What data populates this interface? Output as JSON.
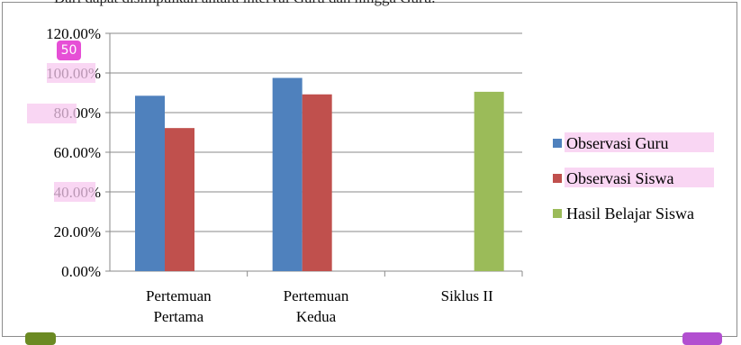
{
  "heading_text": "Dari dapat disimpulkan antara interval Guru dan hingga Guru.",
  "badges": {
    "fifty": "50"
  },
  "colors": {
    "observasi_guru": "#4f81bd",
    "observasi_siswa": "#c0504d",
    "hasil_belajar": "#9bbb59",
    "highlight": "#f7c8ef"
  },
  "chart_data": {
    "type": "bar",
    "categories": [
      [
        "Pertemuan",
        "Pertama"
      ],
      [
        "Pertemuan",
        "Kedua"
      ],
      [
        "Siklus II"
      ]
    ],
    "series": [
      {
        "name": "Observasi Guru",
        "color": "#4f81bd",
        "values": [
          88.5,
          97.5,
          null
        ]
      },
      {
        "name": "Observasi Siswa",
        "color": "#c0504d",
        "values": [
          72.2,
          89.2,
          null
        ]
      },
      {
        "name": "Hasil Belajar Siswa",
        "color": "#9bbb59",
        "values": [
          null,
          null,
          90.5
        ]
      }
    ],
    "yticks": [
      "0.00%",
      "20.00%",
      "40.00%",
      "60.00%",
      "80.00%",
      "100.00%",
      "120.00%"
    ],
    "ylim": [
      0,
      120
    ],
    "grid": true,
    "legend_position": "right"
  }
}
